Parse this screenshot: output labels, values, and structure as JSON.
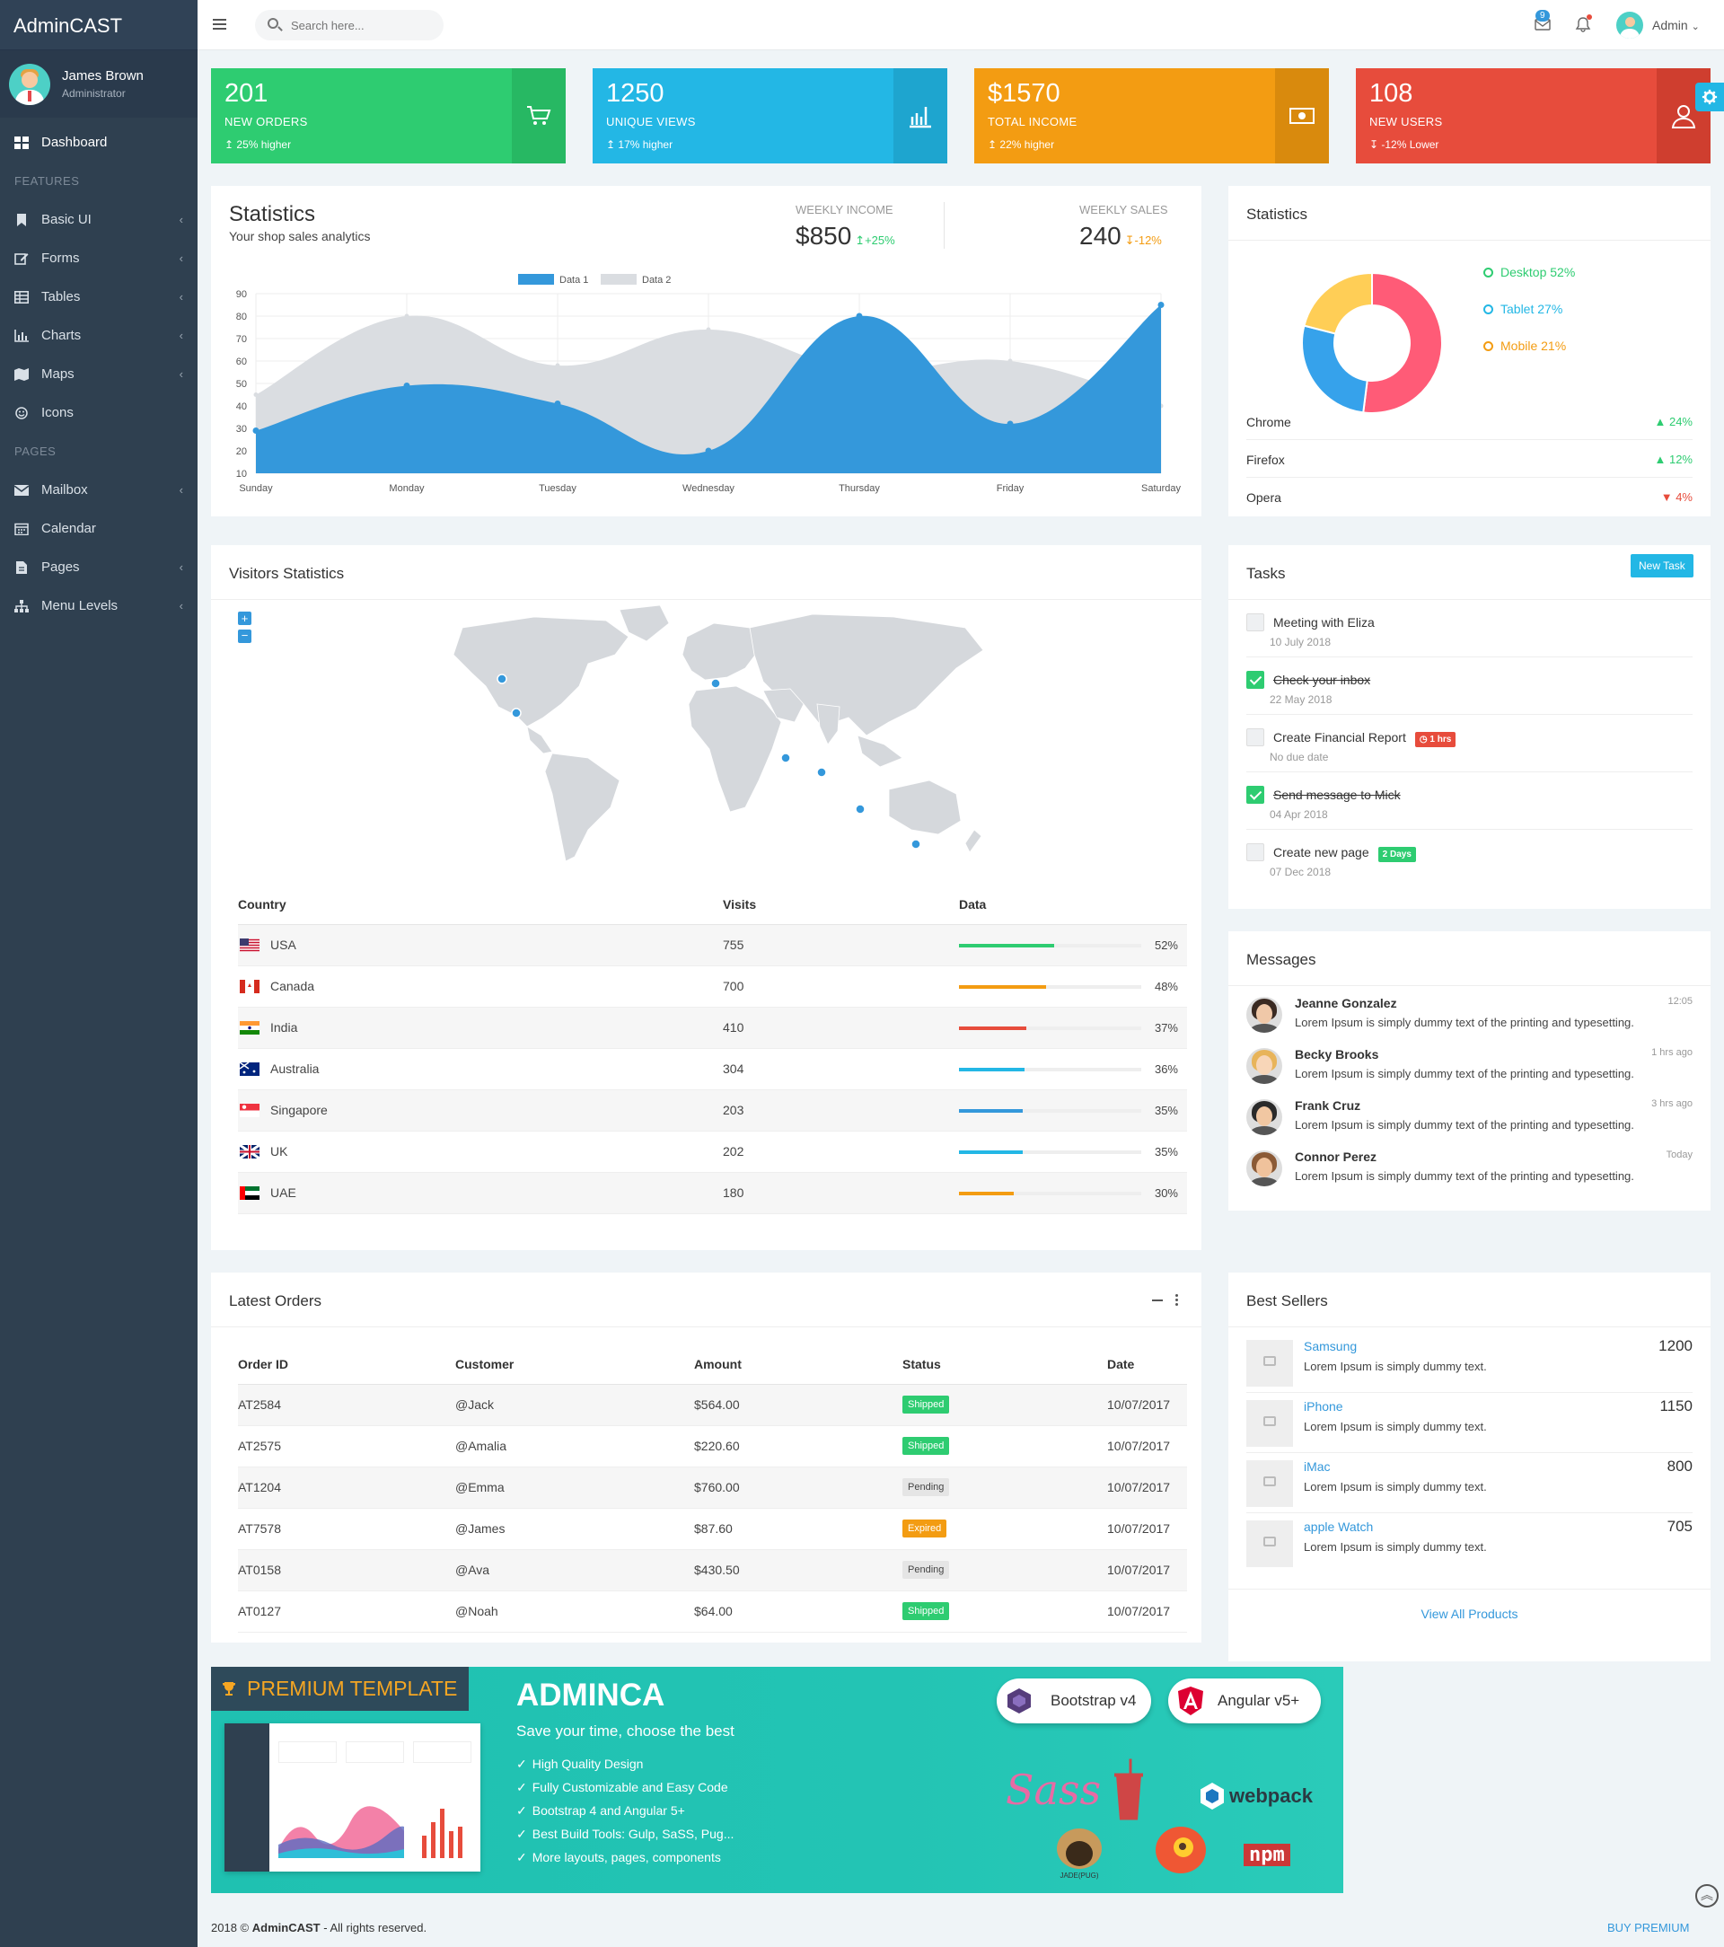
{
  "app": {
    "brand": "AdminCAST"
  },
  "user": {
    "name": "James Brown",
    "role": "Administrator"
  },
  "sidebar": {
    "dashboard": "Dashboard",
    "features_head": "FEATURES",
    "features": [
      "Basic UI",
      "Forms",
      "Tables",
      "Charts",
      "Maps",
      "Icons"
    ],
    "pages_head": "PAGES",
    "mailbox": "Mailbox",
    "calendar": "Calendar",
    "pages": "Pages",
    "menu_levels": "Menu Levels"
  },
  "topbar": {
    "search_placeholder": "Search here...",
    "mail_count": "9",
    "admin": "Admin"
  },
  "stats": [
    {
      "value": "201",
      "label": "NEW ORDERS",
      "sub": "25% higher",
      "color": "#2ecc71",
      "side": "#27b863"
    },
    {
      "value": "1250",
      "label": "UNIQUE VIEWS",
      "sub": "17% higher",
      "color": "#23b7e5",
      "side": "#1ea5cf"
    },
    {
      "value": "$1570",
      "label": "TOTAL INCOME",
      "sub": "22% higher",
      "color": "#f39c12",
      "side": "#d98a0d"
    },
    {
      "value": "108",
      "label": "NEW USERS",
      "sub": "-12% Lower",
      "color": "#e74c3c",
      "side": "#cf3e2f"
    }
  ],
  "sales": {
    "title": "Statistics",
    "subtitle": "Your shop sales analytics",
    "weekly_income_label": "WEEKLY INCOME",
    "weekly_income": "$850",
    "weekly_income_change": "+25%",
    "weekly_sales_label": "WEEKLY SALES",
    "weekly_sales": "240",
    "weekly_sales_change": "-12%"
  },
  "chart_data": {
    "type": "area",
    "categories": [
      "Sunday",
      "Monday",
      "Tuesday",
      "Wednesday",
      "Thursday",
      "Friday",
      "Saturday"
    ],
    "series": [
      {
        "name": "Data 1",
        "values": [
          29,
          49,
          41,
          20,
          80,
          32,
          85
        ],
        "color": "#3498db"
      },
      {
        "name": "Data 2",
        "values": [
          45,
          80,
          58,
          74,
          56,
          60,
          40
        ],
        "color": "#dadde1"
      }
    ],
    "yticks": [
      10,
      20,
      30,
      40,
      50,
      60,
      70,
      80,
      90
    ],
    "ylim": [
      10,
      90
    ],
    "legend": "top-center",
    "grid": true
  },
  "device_stats": {
    "title": "Statistics",
    "segments": [
      {
        "label": "Desktop 52%",
        "value": 52,
        "color": "#ff5b77"
      },
      {
        "label": "Tablet 27%",
        "value": 27,
        "color": "#36a2eb"
      },
      {
        "label": "Mobile 21%",
        "value": 21,
        "color": "#ffce56"
      }
    ],
    "legend_colors": [
      "#2ecc71",
      "#23b7e5",
      "#f39c12"
    ],
    "browsers": [
      {
        "name": "Chrome",
        "change": "24%",
        "dir": "up"
      },
      {
        "name": "Firefox",
        "change": "12%",
        "dir": "up"
      },
      {
        "name": "Opera",
        "change": "4%",
        "dir": "down"
      }
    ]
  },
  "visitors": {
    "title": "Visitors Statistics",
    "columns": [
      "Country",
      "Visits",
      "Data"
    ],
    "rows": [
      {
        "country": "USA",
        "visits": "755",
        "percent": 52,
        "label": "52%",
        "color": "#2ecc71"
      },
      {
        "country": "Canada",
        "visits": "700",
        "percent": 48,
        "label": "48%",
        "color": "#f39c12"
      },
      {
        "country": "India",
        "visits": "410",
        "percent": 37,
        "label": "37%",
        "color": "#e74c3c"
      },
      {
        "country": "Australia",
        "visits": "304",
        "percent": 36,
        "label": "36%",
        "color": "#23b7e5"
      },
      {
        "country": "Singapore",
        "visits": "203",
        "percent": 35,
        "label": "35%",
        "color": "#3498db"
      },
      {
        "country": "UK",
        "visits": "202",
        "percent": 35,
        "label": "35%",
        "color": "#23b7e5"
      },
      {
        "country": "UAE",
        "visits": "180",
        "percent": 30,
        "label": "30%",
        "color": "#f39c12"
      }
    ]
  },
  "tasks": {
    "title": "Tasks",
    "new_button": "New Task",
    "items": [
      {
        "text": "Meeting with Eliza",
        "date": "10 July 2018",
        "done": false,
        "badge": ""
      },
      {
        "text": "Check your inbox",
        "date": "22 May 2018",
        "done": true,
        "badge": ""
      },
      {
        "text": "Create Financial Report",
        "date": "No due date",
        "done": false,
        "badge": "1 hrs",
        "badge_color": "#e74c3c"
      },
      {
        "text": "Send message to Mick",
        "date": "04 Apr 2018",
        "done": true,
        "badge": ""
      },
      {
        "text": "Create new page",
        "date": "07 Dec 2018",
        "done": false,
        "badge": "2 Days",
        "badge_color": "#2ecc71"
      }
    ]
  },
  "messages": {
    "title": "Messages",
    "items": [
      {
        "name": "Jeanne Gonzalez",
        "time": "12:05",
        "text": "Lorem Ipsum is simply dummy text of the printing and typesetting."
      },
      {
        "name": "Becky Brooks",
        "time": "1 hrs ago",
        "text": "Lorem Ipsum is simply dummy text of the printing and typesetting."
      },
      {
        "name": "Frank Cruz",
        "time": "3 hrs ago",
        "text": "Lorem Ipsum is simply dummy text of the printing and typesetting."
      },
      {
        "name": "Connor Perez",
        "time": "Today",
        "text": "Lorem Ipsum is simply dummy text of the printing and typesetting."
      }
    ]
  },
  "orders": {
    "title": "Latest Orders",
    "columns": [
      "Order ID",
      "Customer",
      "Amount",
      "Status",
      "Date"
    ],
    "rows": [
      {
        "id": "AT2584",
        "customer": "@Jack",
        "amount": "$564.00",
        "status": "Shipped",
        "status_color": "#2ecc71",
        "date": "10/07/2017"
      },
      {
        "id": "AT2575",
        "customer": "@Amalia",
        "amount": "$220.60",
        "status": "Shipped",
        "status_color": "#2ecc71",
        "date": "10/07/2017"
      },
      {
        "id": "AT1204",
        "customer": "@Emma",
        "amount": "$760.00",
        "status": "Pending",
        "status_color": "#e5e5e5",
        "date": "10/07/2017"
      },
      {
        "id": "AT7578",
        "customer": "@James",
        "amount": "$87.60",
        "status": "Expired",
        "status_color": "#f39c12",
        "date": "10/07/2017"
      },
      {
        "id": "AT0158",
        "customer": "@Ava",
        "amount": "$430.50",
        "status": "Pending",
        "status_color": "#e5e5e5",
        "date": "10/07/2017"
      },
      {
        "id": "AT0127",
        "customer": "@Noah",
        "amount": "$64.00",
        "status": "Shipped",
        "status_color": "#2ecc71",
        "date": "10/07/2017"
      }
    ]
  },
  "best_sellers": {
    "title": "Best Sellers",
    "items": [
      {
        "name": "Samsung",
        "desc": "Lorem Ipsum is simply dummy text.",
        "value": "1200"
      },
      {
        "name": "iPhone",
        "desc": "Lorem Ipsum is simply dummy text.",
        "value": "1150"
      },
      {
        "name": "iMac",
        "desc": "Lorem Ipsum is simply dummy text.",
        "value": "800"
      },
      {
        "name": "apple Watch",
        "desc": "Lorem Ipsum is simply dummy text.",
        "value": "705"
      }
    ],
    "view_all": "View All Products"
  },
  "promo": {
    "badge": "PREMIUM TEMPLATE",
    "title": "ADMINCA",
    "subtitle": "Save your time, choose the best",
    "features": [
      "High Quality Design",
      "Fully Customizable and Easy Code",
      "Bootstrap 4 and Angular 5+",
      "Best Build Tools: Gulp, SaSS, Pug...",
      "More layouts, pages, components"
    ],
    "bootstrap": "Bootstrap v4",
    "angular": "Angular v5+",
    "webpack": "webpack",
    "npm": "npm",
    "sass": "Sass",
    "jade": "JADE(PUG)"
  },
  "footer": {
    "year": "2018 ©",
    "brand": "AdminCAST",
    "rights": "- All rights reserved.",
    "buy": "BUY PREMIUM"
  }
}
